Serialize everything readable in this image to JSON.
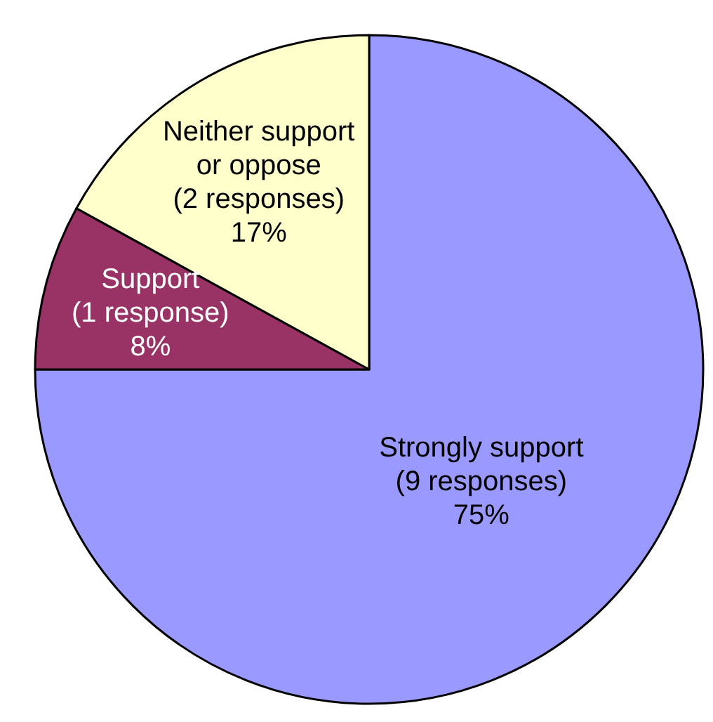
{
  "chart_data": {
    "type": "pie",
    "categories": [
      "Strongly support",
      "Support",
      "Neither support or oppose"
    ],
    "values": [
      75,
      8,
      17
    ],
    "colors": [
      "#9999ff",
      "#993366",
      "#ffffcc"
    ],
    "value_labels": [
      "(9 responses)\n75%",
      "(1 response)\n8%",
      "(2 responses)\n17%"
    ],
    "legend": false
  }
}
